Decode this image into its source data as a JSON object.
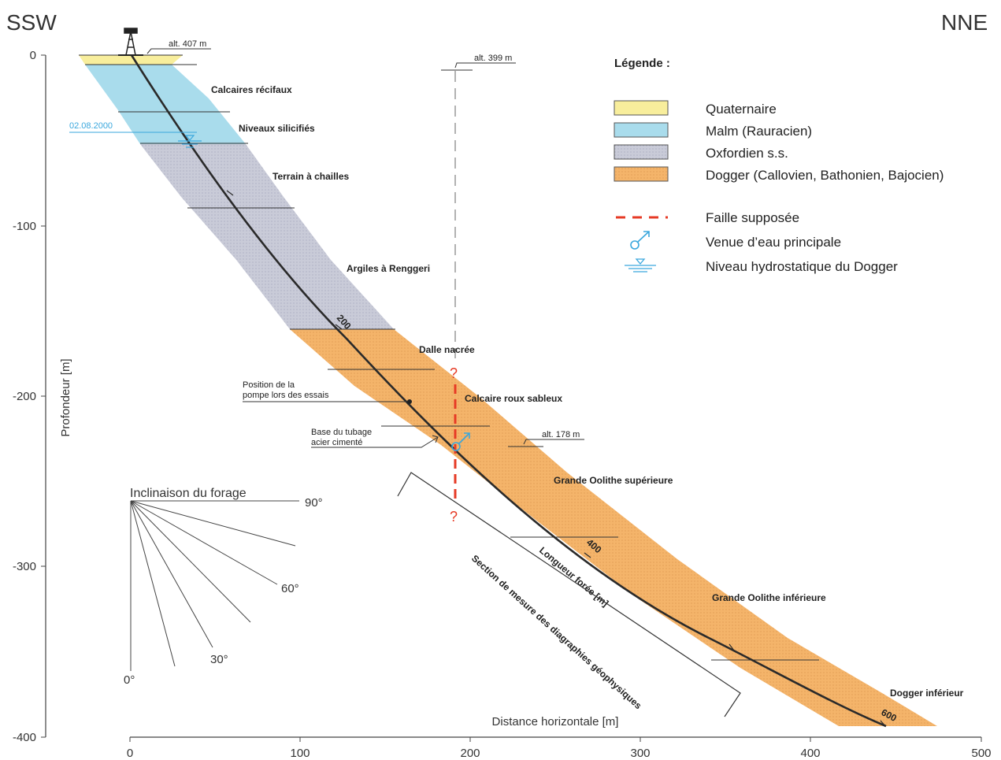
{
  "orientation": {
    "left": "SSW",
    "right": "NNE"
  },
  "axes": {
    "y_label": "Profondeur [m]",
    "x_label": "Distance horizontale [m]",
    "y_ticks": [
      "0",
      "-100",
      "-200",
      "-300",
      "-400"
    ],
    "x_ticks": [
      "0",
      "100",
      "200",
      "300",
      "400",
      "500"
    ]
  },
  "annotations": {
    "alt_407": "alt. 407 m",
    "alt_399": "alt. 399 m",
    "alt_178": "alt. 178 m",
    "date_level": "02.08.2000",
    "pump_line1": "Position de la",
    "pump_line2": "pompe lors des essais",
    "casing_line1": "Base du tubage",
    "casing_line2": "acier cimenté",
    "fault_q_top": "?",
    "fault_q_bottom": "?",
    "length_label": "Longueur forée [m]",
    "section_label": "Section de mesure des diagraphies géophysiques",
    "well_mark_200": "200",
    "well_mark_400": "400",
    "well_mark_600": "600"
  },
  "formations": {
    "calcaires_recifaux": "Calcaires récifaux",
    "niveaux_silicifies": "Niveaux silicifiés",
    "terrain_chailles": "Terrain à chailles",
    "argiles_renggeri": "Argiles à Renggeri",
    "dalle_nacree": "Dalle nacrée",
    "calcaire_roux": "Calcaire roux sableux",
    "grande_oolithe_sup": "Grande Oolithe supérieure",
    "grande_oolithe_inf": "Grande Oolithe inférieure",
    "dogger_inferieur": "Dogger inférieur"
  },
  "legend": {
    "title": "Légende :",
    "items": [
      {
        "label": "Quaternaire",
        "color": "#f8ee9c"
      },
      {
        "label": "Malm (Rauracien)",
        "color": "#a9dcec"
      },
      {
        "label": "Oxfordien s.s.",
        "color": "#c9cbd8"
      },
      {
        "label": "Dogger (Callovien, Bathonien, Bajocien)",
        "color": "#f4b46a"
      }
    ],
    "faille": "Faille supposée",
    "venue": "Venue d’eau principale",
    "niveau": "Niveau hydrostatique du Dogger"
  },
  "inclination": {
    "title": "Inclinaison du forage",
    "labels": [
      "90°",
      "60°",
      "30°",
      "0°"
    ]
  },
  "colors": {
    "fault": "#e63a25",
    "water": "#3aa7dd",
    "well": "#2a2a2a"
  }
}
